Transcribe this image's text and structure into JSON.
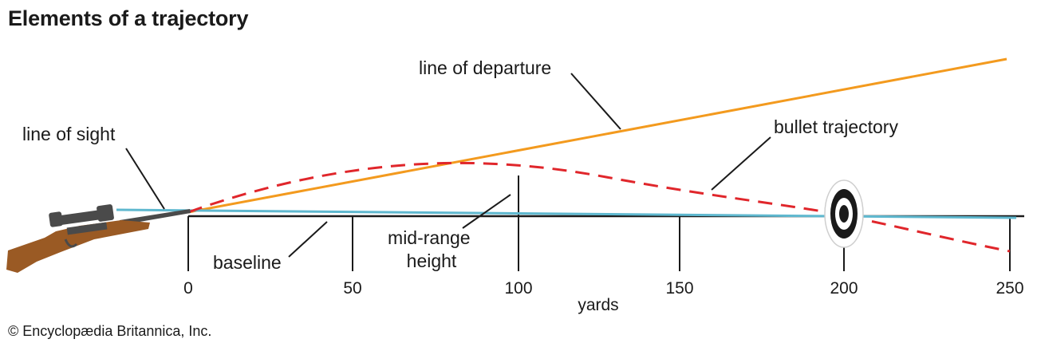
{
  "title": "Elements of a trajectory",
  "credit": "© Encyclopædia Britannica, Inc.",
  "labels": {
    "line_of_departure": "line of departure",
    "line_of_sight": "line of sight",
    "bullet_trajectory": "bullet trajectory",
    "baseline": "baseline",
    "mid_range_line1": "mid-range",
    "mid_range_line2": "height",
    "axis_unit": "yards"
  },
  "axis": {
    "ticks": [
      "0",
      "50",
      "100",
      "150",
      "200",
      "250"
    ]
  },
  "colors": {
    "departure": "#f39a1e",
    "trajectory": "#e0262b",
    "sight": "#5fb8cf",
    "baseline": "#1a1a1a",
    "rifle_stock": "#9a5a24",
    "rifle_metal": "#4a4a4a"
  },
  "icons": {
    "rifle": "rifle-icon",
    "target": "target-icon"
  }
}
